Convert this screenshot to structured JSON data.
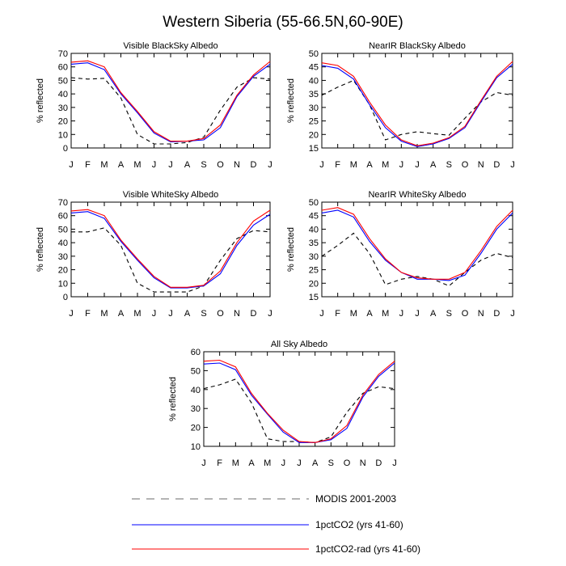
{
  "figure": {
    "title": "Western Siberia (55-66.5N,60-90E)"
  },
  "legend": {
    "entries": [
      {
        "label": "MODIS 2001-2003",
        "color": "#000000",
        "dash": "dashed"
      },
      {
        "label": "1pctCO2 (yrs 41-60)",
        "color": "#0000ff",
        "dash": "solid"
      },
      {
        "label": "1pctCO2-rad (yrs 41-60)",
        "color": "#ff0000",
        "dash": "solid"
      }
    ]
  },
  "chart_data": [
    {
      "type": "line",
      "title": "Visible BlackSky Albedo",
      "ylabel": "% reflected",
      "categories": [
        "J",
        "F",
        "M",
        "A",
        "M",
        "J",
        "J",
        "A",
        "S",
        "O",
        "N",
        "D",
        "J"
      ],
      "ylim": [
        0,
        70
      ],
      "yticks": [
        0,
        10,
        20,
        30,
        40,
        50,
        60,
        70
      ],
      "series": [
        {
          "name": "MODIS 2001-2003",
          "values": [
            52,
            51,
            51.5,
            37,
            10,
            3,
            3,
            4,
            8,
            28,
            45,
            52,
            51
          ]
        },
        {
          "name": "1pctCO2 (yrs 41-60)",
          "values": [
            62,
            63,
            58,
            40,
            26,
            11,
            4.5,
            5,
            6,
            15,
            38,
            53,
            62
          ]
        },
        {
          "name": "1pctCO2-rad (yrs 41-60)",
          "values": [
            63.5,
            64.5,
            60,
            41,
            27,
            12,
            5,
            5,
            7,
            17,
            39,
            54,
            64
          ]
        }
      ]
    },
    {
      "type": "line",
      "title": "NearIR BlackSky Albedo",
      "ylabel": "% reflected",
      "categories": [
        "J",
        "F",
        "M",
        "A",
        "M",
        "J",
        "J",
        "A",
        "S",
        "O",
        "N",
        "D",
        "J"
      ],
      "ylim": [
        15,
        50
      ],
      "yticks": [
        15,
        20,
        25,
        30,
        35,
        40,
        45,
        50
      ],
      "series": [
        {
          "name": "MODIS 2001-2003",
          "values": [
            34.5,
            37.5,
            40,
            31,
            18,
            20,
            21,
            20.3,
            19.7,
            26,
            32,
            35.5,
            34.5
          ]
        },
        {
          "name": "1pctCO2 (yrs 41-60)",
          "values": [
            45.5,
            44.5,
            40.5,
            31,
            22.5,
            17.5,
            15.5,
            16.5,
            18.5,
            22.5,
            32,
            41,
            46
          ]
        },
        {
          "name": "1pctCO2-rad (yrs 41-60)",
          "values": [
            46.5,
            45.5,
            41.5,
            32,
            23.5,
            18,
            15.8,
            16.8,
            18.8,
            23,
            32.5,
            41.5,
            47
          ]
        }
      ]
    },
    {
      "type": "line",
      "title": "Visible WhiteSky Albedo",
      "ylabel": "% reflected",
      "categories": [
        "J",
        "F",
        "M",
        "A",
        "M",
        "J",
        "J",
        "A",
        "S",
        "O",
        "N",
        "D",
        "J"
      ],
      "ylim": [
        0,
        70
      ],
      "yticks": [
        0,
        10,
        20,
        30,
        40,
        50,
        60,
        70
      ],
      "series": [
        {
          "name": "MODIS 2001-2003",
          "values": [
            48,
            48,
            51,
            38,
            10,
            3.5,
            3.5,
            3.5,
            8,
            27,
            43,
            49,
            48
          ]
        },
        {
          "name": "1pctCO2 (yrs 41-60)",
          "values": [
            62,
            63,
            58,
            41,
            27,
            14,
            6.5,
            6.5,
            8,
            17,
            38,
            53,
            61
          ]
        },
        {
          "name": "1pctCO2-rad (yrs 41-60)",
          "values": [
            63.5,
            64.5,
            60,
            42,
            28,
            15,
            7,
            7,
            8.5,
            19,
            40,
            56,
            64
          ]
        }
      ]
    },
    {
      "type": "line",
      "title": "NearIR WhiteSky Albedo",
      "ylabel": "% reflected",
      "categories": [
        "J",
        "F",
        "M",
        "A",
        "M",
        "J",
        "J",
        "A",
        "S",
        "O",
        "N",
        "D",
        "J"
      ],
      "ylim": [
        15,
        50
      ],
      "yticks": [
        15,
        20,
        25,
        30,
        35,
        40,
        45,
        50
      ],
      "series": [
        {
          "name": "MODIS 2001-2003",
          "values": [
            30,
            34,
            38.5,
            31,
            19.5,
            21.5,
            22.5,
            21.5,
            19,
            24,
            28.5,
            31,
            29.5
          ]
        },
        {
          "name": "1pctCO2 (yrs 41-60)",
          "values": [
            46,
            47,
            44.5,
            35.5,
            28.5,
            24,
            21.5,
            21.5,
            21,
            23,
            31,
            40,
            46
          ]
        },
        {
          "name": "1pctCO2-rad (yrs 41-60)",
          "values": [
            47,
            48,
            45.5,
            36.5,
            29,
            24,
            22,
            21.5,
            21.5,
            24,
            32,
            41,
            47
          ]
        }
      ]
    },
    {
      "type": "line",
      "title": "All Sky Albedo",
      "ylabel": "% reflected",
      "categories": [
        "J",
        "F",
        "M",
        "A",
        "M",
        "J",
        "J",
        "A",
        "S",
        "O",
        "N",
        "D",
        "J"
      ],
      "ylim": [
        10,
        60
      ],
      "yticks": [
        10,
        20,
        30,
        40,
        50,
        60
      ],
      "series": [
        {
          "name": "MODIS 2001-2003",
          "values": [
            40.5,
            42.5,
            45.5,
            33,
            14,
            12.5,
            12.5,
            12,
            15,
            28,
            38,
            41.5,
            40.5
          ]
        },
        {
          "name": "1pctCO2 (yrs 41-60)",
          "values": [
            53.5,
            54,
            50.5,
            37,
            27,
            17.5,
            12,
            12,
            13.5,
            19.5,
            36,
            47,
            54
          ]
        },
        {
          "name": "1pctCO2-rad (yrs 41-60)",
          "values": [
            55,
            55.5,
            52,
            38,
            27.5,
            18.5,
            12.5,
            12,
            14,
            21,
            37,
            48,
            55
          ]
        }
      ]
    }
  ]
}
